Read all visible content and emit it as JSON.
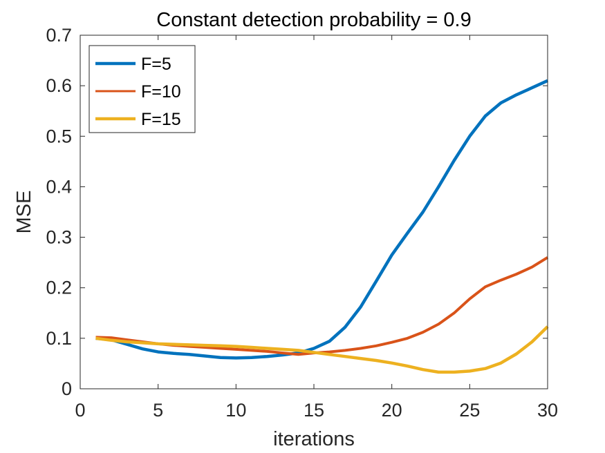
{
  "chart_data": {
    "type": "line",
    "title": "Constant detection probability = 0.9",
    "xlabel": "iterations",
    "ylabel": "MSE",
    "xlim": [
      0,
      30
    ],
    "ylim": [
      0,
      0.7
    ],
    "xticks": [
      0,
      5,
      10,
      15,
      20,
      25,
      30
    ],
    "xtick_labels": [
      "0",
      "5",
      "10",
      "15",
      "20",
      "25",
      "30"
    ],
    "yticks": [
      0,
      0.1,
      0.2,
      0.3,
      0.4,
      0.5,
      0.6,
      0.7
    ],
    "ytick_labels": [
      "0",
      "0.1",
      "0.2",
      "0.3",
      "0.4",
      "0.5",
      "0.6",
      "0.7"
    ],
    "grid": false,
    "legend_position": "top-left",
    "x": [
      1,
      2,
      3,
      4,
      5,
      6,
      7,
      8,
      9,
      10,
      11,
      12,
      13,
      14,
      15,
      16,
      17,
      18,
      19,
      20,
      21,
      22,
      23,
      24,
      25,
      26,
      27,
      28,
      29,
      30
    ],
    "series": [
      {
        "name": "F=5",
        "color": "#0072BD",
        "values": [
          0.1,
          0.097,
          0.088,
          0.079,
          0.073,
          0.07,
          0.068,
          0.065,
          0.062,
          0.061,
          0.062,
          0.064,
          0.067,
          0.071,
          0.08,
          0.094,
          0.122,
          0.162,
          0.213,
          0.265,
          0.308,
          0.35,
          0.4,
          0.452,
          0.5,
          0.54,
          0.566,
          0.582,
          0.596,
          0.61
        ]
      },
      {
        "name": "F=10",
        "color": "#D95319",
        "values": [
          0.102,
          0.101,
          0.097,
          0.093,
          0.089,
          0.086,
          0.084,
          0.082,
          0.08,
          0.078,
          0.076,
          0.074,
          0.071,
          0.068,
          0.071,
          0.073,
          0.076,
          0.08,
          0.085,
          0.092,
          0.1,
          0.112,
          0.128,
          0.15,
          0.178,
          0.202,
          0.215,
          0.227,
          0.241,
          0.26
        ]
      },
      {
        "name": "F=15",
        "color": "#EDB120",
        "values": [
          0.1,
          0.096,
          0.093,
          0.091,
          0.089,
          0.088,
          0.087,
          0.086,
          0.085,
          0.084,
          0.082,
          0.08,
          0.078,
          0.076,
          0.072,
          0.068,
          0.064,
          0.06,
          0.056,
          0.051,
          0.045,
          0.038,
          0.033,
          0.033,
          0.035,
          0.04,
          0.051,
          0.069,
          0.093,
          0.123
        ]
      }
    ]
  }
}
